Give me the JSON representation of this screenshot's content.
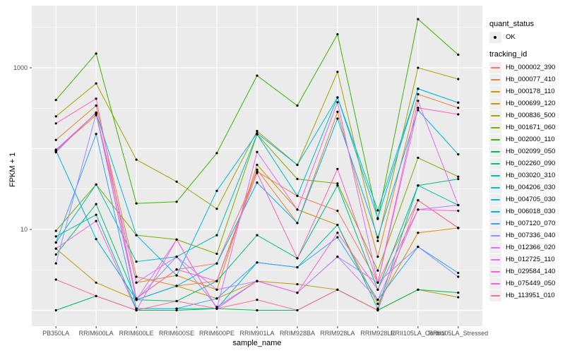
{
  "chart_data": {
    "type": "line",
    "title": "",
    "xlabel": "sample_name",
    "ylabel": "FPKM + 1",
    "y_scale": "log10",
    "ylim": [
      0.75,
      5500
    ],
    "y_tick_labels": [
      {
        "value": 10,
        "label": "10"
      },
      {
        "value": 1000,
        "label": "1000"
      }
    ],
    "y_major_gridlines": [
      1,
      10,
      100,
      1000
    ],
    "y_minor_gridlines": [
      3.162,
      31.62,
      316.2,
      3162
    ],
    "grid": true,
    "panel_bg": "#ebebeb",
    "grid_color": "#ffffff",
    "point_color": "#000000",
    "axis_text_color": "#4d4d4d",
    "legend_position": "right",
    "categories": [
      "PB350LA",
      "RRIM600LA",
      "RRIM600LE",
      "RRIM600SE",
      "RRIM600PE",
      "RRIM901LA",
      "RRIM928BA",
      "RRIM928LA",
      "RRIM928LE",
      "RRII105LA_Control",
      "RRII105LA_Stressed"
    ],
    "series": [
      {
        "name": "Hb_000002_390",
        "color": "#F8766D",
        "values": [
          90,
          280,
          1.4,
          3.2,
          3.8,
          52,
          26,
          17,
          2.2,
          23,
          10.5
        ]
      },
      {
        "name": "Hb_000077_410",
        "color": "#EA8331",
        "values": [
          128,
          340,
          2.6,
          2.0,
          2.3,
          55,
          12,
          285,
          4.6,
          470,
          320
        ]
      },
      {
        "name": "Hb_000178_110",
        "color": "#D89000",
        "values": [
          95,
          260,
          2.2,
          2.7,
          1.8,
          63,
          17.6,
          11.4,
          1.2,
          9.1,
          10.4
        ]
      },
      {
        "name": "Hb_000699_120",
        "color": "#C09B00",
        "values": [
          5.8,
          2.2,
          1.35,
          2.0,
          1.4,
          2.3,
          2.1,
          1.8,
          1.0,
          1.8,
          1.45
        ]
      },
      {
        "name": "Hb_000836_500",
        "color": "#A3A500",
        "values": [
          250,
          640,
          73,
          39,
          18,
          165,
          63,
          890,
          7.2,
          1000,
          725
        ]
      },
      {
        "name": "Hb_001671_060",
        "color": "#7CAE00",
        "values": [
          9.6,
          36,
          8.5,
          7.5,
          5.0,
          150,
          42,
          37,
          3.1,
          77,
          45
        ]
      },
      {
        "name": "Hb_002000_110",
        "color": "#39B600",
        "values": [
          400,
          1500,
          21,
          22,
          88,
          800,
          340,
          2600,
          13.5,
          4000,
          1450
        ]
      },
      {
        "name": "Hb_002099_050",
        "color": "#00BB4E",
        "values": [
          1.0,
          1.5,
          1.0,
          1.0,
          1.05,
          1.0,
          1.0,
          1.8,
          1.0,
          1.8,
          1.65
        ]
      },
      {
        "name": "Hb_002260_090",
        "color": "#00BF7D",
        "values": [
          4.9,
          20.6,
          1.35,
          1.3,
          2.3,
          8.5,
          4.4,
          35,
          1.8,
          35,
          42
        ]
      },
      {
        "name": "Hb_003020_310",
        "color": "#00C1A3",
        "values": [
          8.2,
          15.2,
          1.05,
          1.05,
          1.05,
          3.9,
          3.4,
          11.4,
          1.05,
          35,
          20
        ]
      },
      {
        "name": "Hb_004206_030",
        "color": "#00BFC4",
        "values": [
          6.9,
          36,
          4.0,
          4.6,
          8.5,
          150,
          26,
          430,
          17.2,
          550,
          370
        ]
      },
      {
        "name": "Hb_004705_030",
        "color": "#00BAE0",
        "values": [
          95,
          275,
          8.5,
          2.7,
          30,
          155,
          63,
          430,
          13.8,
          550,
          370
        ]
      },
      {
        "name": "Hb_006018_030",
        "color": "#00B0F6",
        "values": [
          95,
          7.6,
          1.35,
          2.0,
          3.8,
          38,
          12,
          235,
          8.0,
          300,
          85
        ]
      },
      {
        "name": "Hb_007120_070",
        "color": "#35A2FF",
        "values": [
          6.9,
          152,
          1.05,
          1.05,
          1.4,
          3.9,
          3.4,
          8.0,
          1.35,
          6.1,
          2.9
        ]
      },
      {
        "name": "Hb_007336_040",
        "color": "#9590FF",
        "values": [
          3.8,
          270,
          1.35,
          4.6,
          1.1,
          2.3,
          1.65,
          4.6,
          2.2,
          6.1,
          2.6
        ]
      },
      {
        "name": "Hb_012366_020",
        "color": "#C77CFF",
        "values": [
          93,
          275,
          2.2,
          4.6,
          1.8,
          2.3,
          1.65,
          4.6,
          1.35,
          17.6,
          20
        ]
      },
      {
        "name": "Hb_012725_110",
        "color": "#E76BF3",
        "values": [
          97,
          275,
          1.35,
          7.5,
          1.05,
          91,
          17.6,
          375,
          2.2,
          390,
          20
        ]
      },
      {
        "name": "Hb_029584_140",
        "color": "#FA62DB",
        "values": [
          5.8,
          12.7,
          1.0,
          7.5,
          1.05,
          2.3,
          1.65,
          9.1,
          1.8,
          17.6,
          17
        ]
      },
      {
        "name": "Hb_075449_050",
        "color": "#FF62BC",
        "values": [
          205,
          415,
          1.4,
          3.2,
          2.3,
          50,
          4.4,
          56,
          2.2,
          320,
          265
        ]
      },
      {
        "name": "Hb_113951_010",
        "color": "#FF6A98",
        "values": [
          2.4,
          1.5,
          1.0,
          1.3,
          1.05,
          1.35,
          1.0,
          1.8,
          1.0,
          23,
          10.4
        ]
      }
    ],
    "legend": {
      "quant_status_title": "quant_status",
      "quant_status_items": [
        "OK"
      ],
      "tracking_id_title": "tracking_id"
    }
  }
}
